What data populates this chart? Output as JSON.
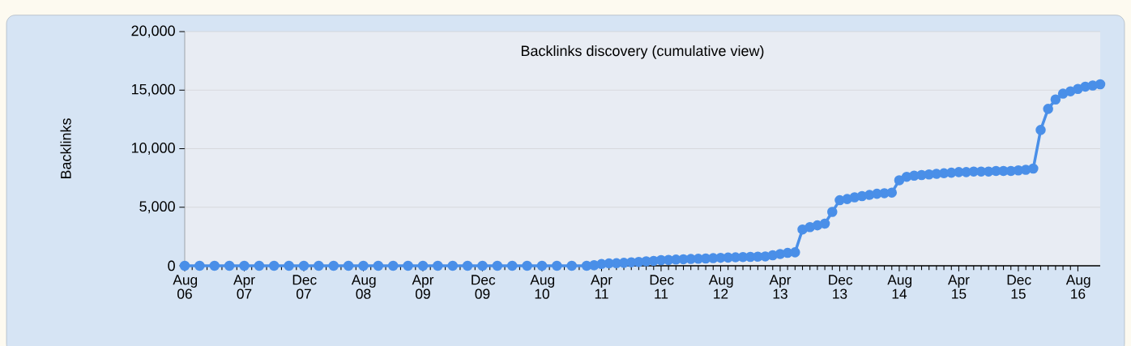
{
  "chart_data": {
    "type": "line",
    "title": "Backlinks discovery (cumulative view)",
    "ylabel": "Backlinks",
    "x": [
      "2006-08",
      "2006-10",
      "2006-12",
      "2007-02",
      "2007-04",
      "2007-06",
      "2007-08",
      "2007-10",
      "2007-12",
      "2008-02",
      "2008-04",
      "2008-06",
      "2008-08",
      "2008-10",
      "2008-12",
      "2009-02",
      "2009-04",
      "2009-06",
      "2009-08",
      "2009-10",
      "2009-12",
      "2010-02",
      "2010-04",
      "2010-06",
      "2010-08",
      "2010-10",
      "2010-12",
      "2011-02",
      "2011-03",
      "2011-04",
      "2011-05",
      "2011-06",
      "2011-07",
      "2011-08",
      "2011-09",
      "2011-10",
      "2011-11",
      "2011-12",
      "2012-01",
      "2012-02",
      "2012-03",
      "2012-04",
      "2012-05",
      "2012-06",
      "2012-07",
      "2012-08",
      "2012-09",
      "2012-10",
      "2012-11",
      "2012-12",
      "2013-01",
      "2013-02",
      "2013-03",
      "2013-04",
      "2013-05",
      "2013-06",
      "2013-07",
      "2013-08",
      "2013-09",
      "2013-10",
      "2013-11",
      "2013-12",
      "2014-01",
      "2014-02",
      "2014-03",
      "2014-04",
      "2014-05",
      "2014-06",
      "2014-07",
      "2014-08",
      "2014-09",
      "2014-10",
      "2014-11",
      "2014-12",
      "2015-01",
      "2015-02",
      "2015-03",
      "2015-04",
      "2015-05",
      "2015-06",
      "2015-07",
      "2015-08",
      "2015-09",
      "2015-10",
      "2015-11",
      "2015-12",
      "2016-01",
      "2016-02",
      "2016-03",
      "2016-04",
      "2016-05",
      "2016-06",
      "2016-07",
      "2016-08",
      "2016-09",
      "2016-10",
      "2016-11"
    ],
    "series": [
      {
        "color": "#4a8fe8",
        "values": [
          0,
          0,
          0,
          0,
          0,
          0,
          0,
          0,
          0,
          0,
          0,
          0,
          0,
          0,
          0,
          0,
          0,
          0,
          0,
          0,
          0,
          0,
          0,
          0,
          0,
          0,
          0,
          0,
          50,
          150,
          200,
          220,
          250,
          300,
          330,
          380,
          420,
          480,
          500,
          530,
          560,
          580,
          600,
          620,
          650,
          680,
          700,
          720,
          740,
          760,
          780,
          800,
          900,
          1000,
          1100,
          1150,
          3100,
          3300,
          3450,
          3600,
          4600,
          5600,
          5700,
          5850,
          5950,
          6050,
          6150,
          6200,
          6250,
          7300,
          7600,
          7700,
          7750,
          7800,
          7850,
          7900,
          7950,
          8000,
          8000,
          8050,
          8050,
          8050,
          8100,
          8100,
          8100,
          8150,
          8200,
          8300,
          11600,
          13400,
          14200,
          14700,
          14900,
          15100,
          15300,
          15400,
          15500
        ]
      }
    ],
    "xlim": [
      "2006-08",
      "2016-11"
    ],
    "xticks": [
      {
        "value": "2006-08",
        "label": "Aug 06"
      },
      {
        "value": "2007-04",
        "label": "Apr 07"
      },
      {
        "value": "2007-12",
        "label": "Dec 07"
      },
      {
        "value": "2008-08",
        "label": "Aug 08"
      },
      {
        "value": "2009-04",
        "label": "Apr 09"
      },
      {
        "value": "2009-12",
        "label": "Dec 09"
      },
      {
        "value": "2010-08",
        "label": "Aug 10"
      },
      {
        "value": "2011-04",
        "label": "Apr 11"
      },
      {
        "value": "2011-12",
        "label": "Dec 11"
      },
      {
        "value": "2012-08",
        "label": "Aug 12"
      },
      {
        "value": "2013-04",
        "label": "Apr 13"
      },
      {
        "value": "2013-12",
        "label": "Dec 13"
      },
      {
        "value": "2014-08",
        "label": "Aug 14"
      },
      {
        "value": "2015-04",
        "label": "Apr 15"
      },
      {
        "value": "2015-12",
        "label": "Dec 15"
      },
      {
        "value": "2016-08",
        "label": "Aug 16"
      }
    ],
    "ylim": [
      0,
      20000
    ],
    "yticks": [
      0,
      {
        "value": 5000,
        "label": "5,000"
      },
      {
        "value": 10000,
        "label": "10,000"
      },
      {
        "value": 15000,
        "label": "15,000"
      },
      {
        "value": 20000,
        "label": "20,000"
      }
    ],
    "grid": "y",
    "marker": "circle",
    "line_style": "solid"
  }
}
